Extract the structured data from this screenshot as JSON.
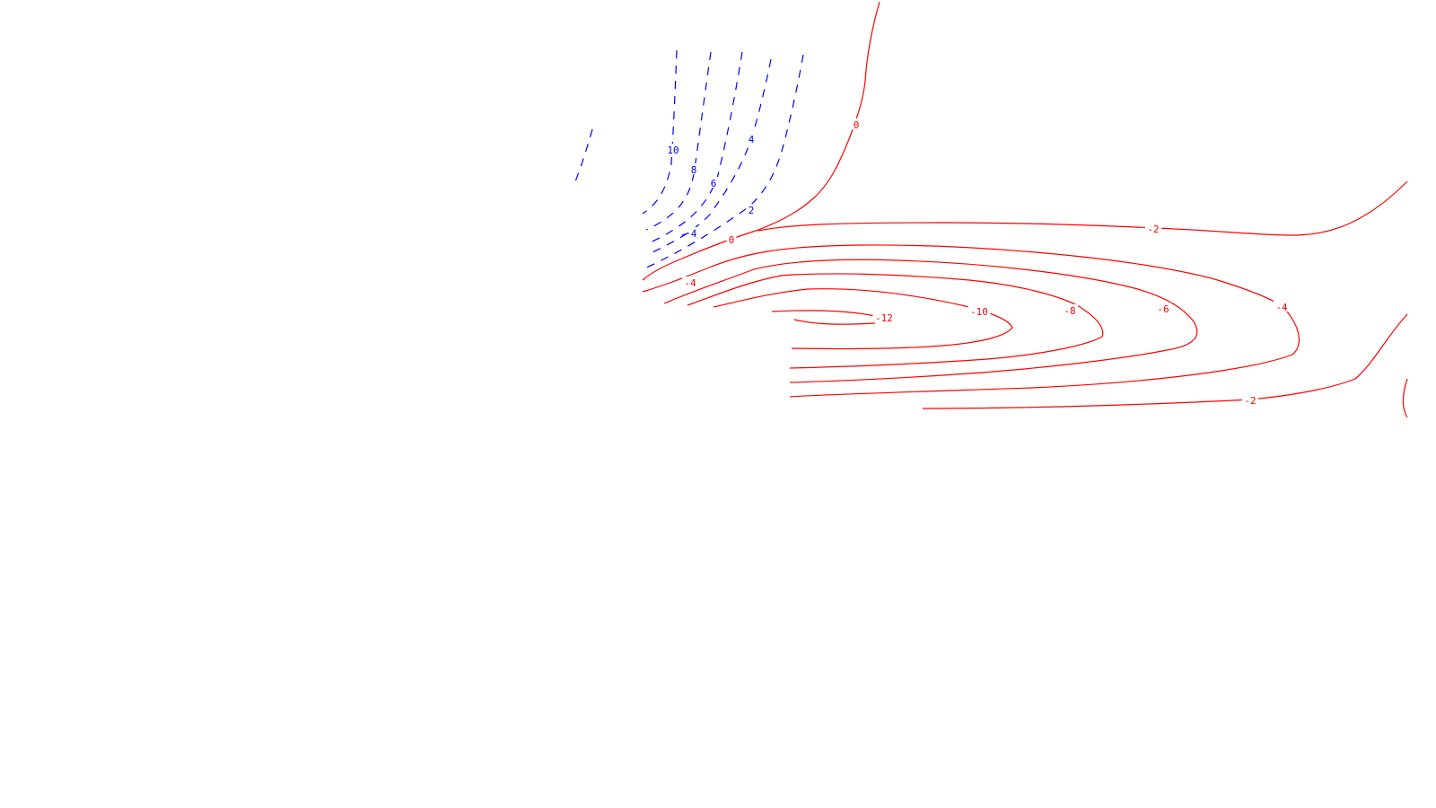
{
  "chart_data": {
    "type": "contour",
    "title": "",
    "xlabel": "",
    "ylabel": "",
    "legend": "none",
    "grid": false,
    "colors": {
      "positive": "#0000ff",
      "nonpositive": "#ff0000",
      "background": "#ffffff"
    },
    "line_styles": {
      "positive": "dashed",
      "nonpositive": "solid"
    },
    "contour_levels": [
      {
        "value": 10,
        "label": "10",
        "sign": "positive"
      },
      {
        "value": 8,
        "label": "8",
        "sign": "positive"
      },
      {
        "value": 6,
        "label": "6",
        "sign": "positive"
      },
      {
        "value": 4,
        "label": "4",
        "sign": "positive"
      },
      {
        "value": 2,
        "label": "2",
        "sign": "positive"
      },
      {
        "value": 0,
        "label": "0",
        "sign": "zero"
      },
      {
        "value": -2,
        "label": "-2",
        "sign": "negative"
      },
      {
        "value": -4,
        "label": "-4",
        "sign": "negative"
      },
      {
        "value": -6,
        "label": "-6",
        "sign": "negative"
      },
      {
        "value": -8,
        "label": "-8",
        "sign": "negative"
      },
      {
        "value": -10,
        "label": "-10",
        "sign": "negative"
      },
      {
        "value": -12,
        "label": "-12",
        "sign": "negative"
      }
    ]
  }
}
